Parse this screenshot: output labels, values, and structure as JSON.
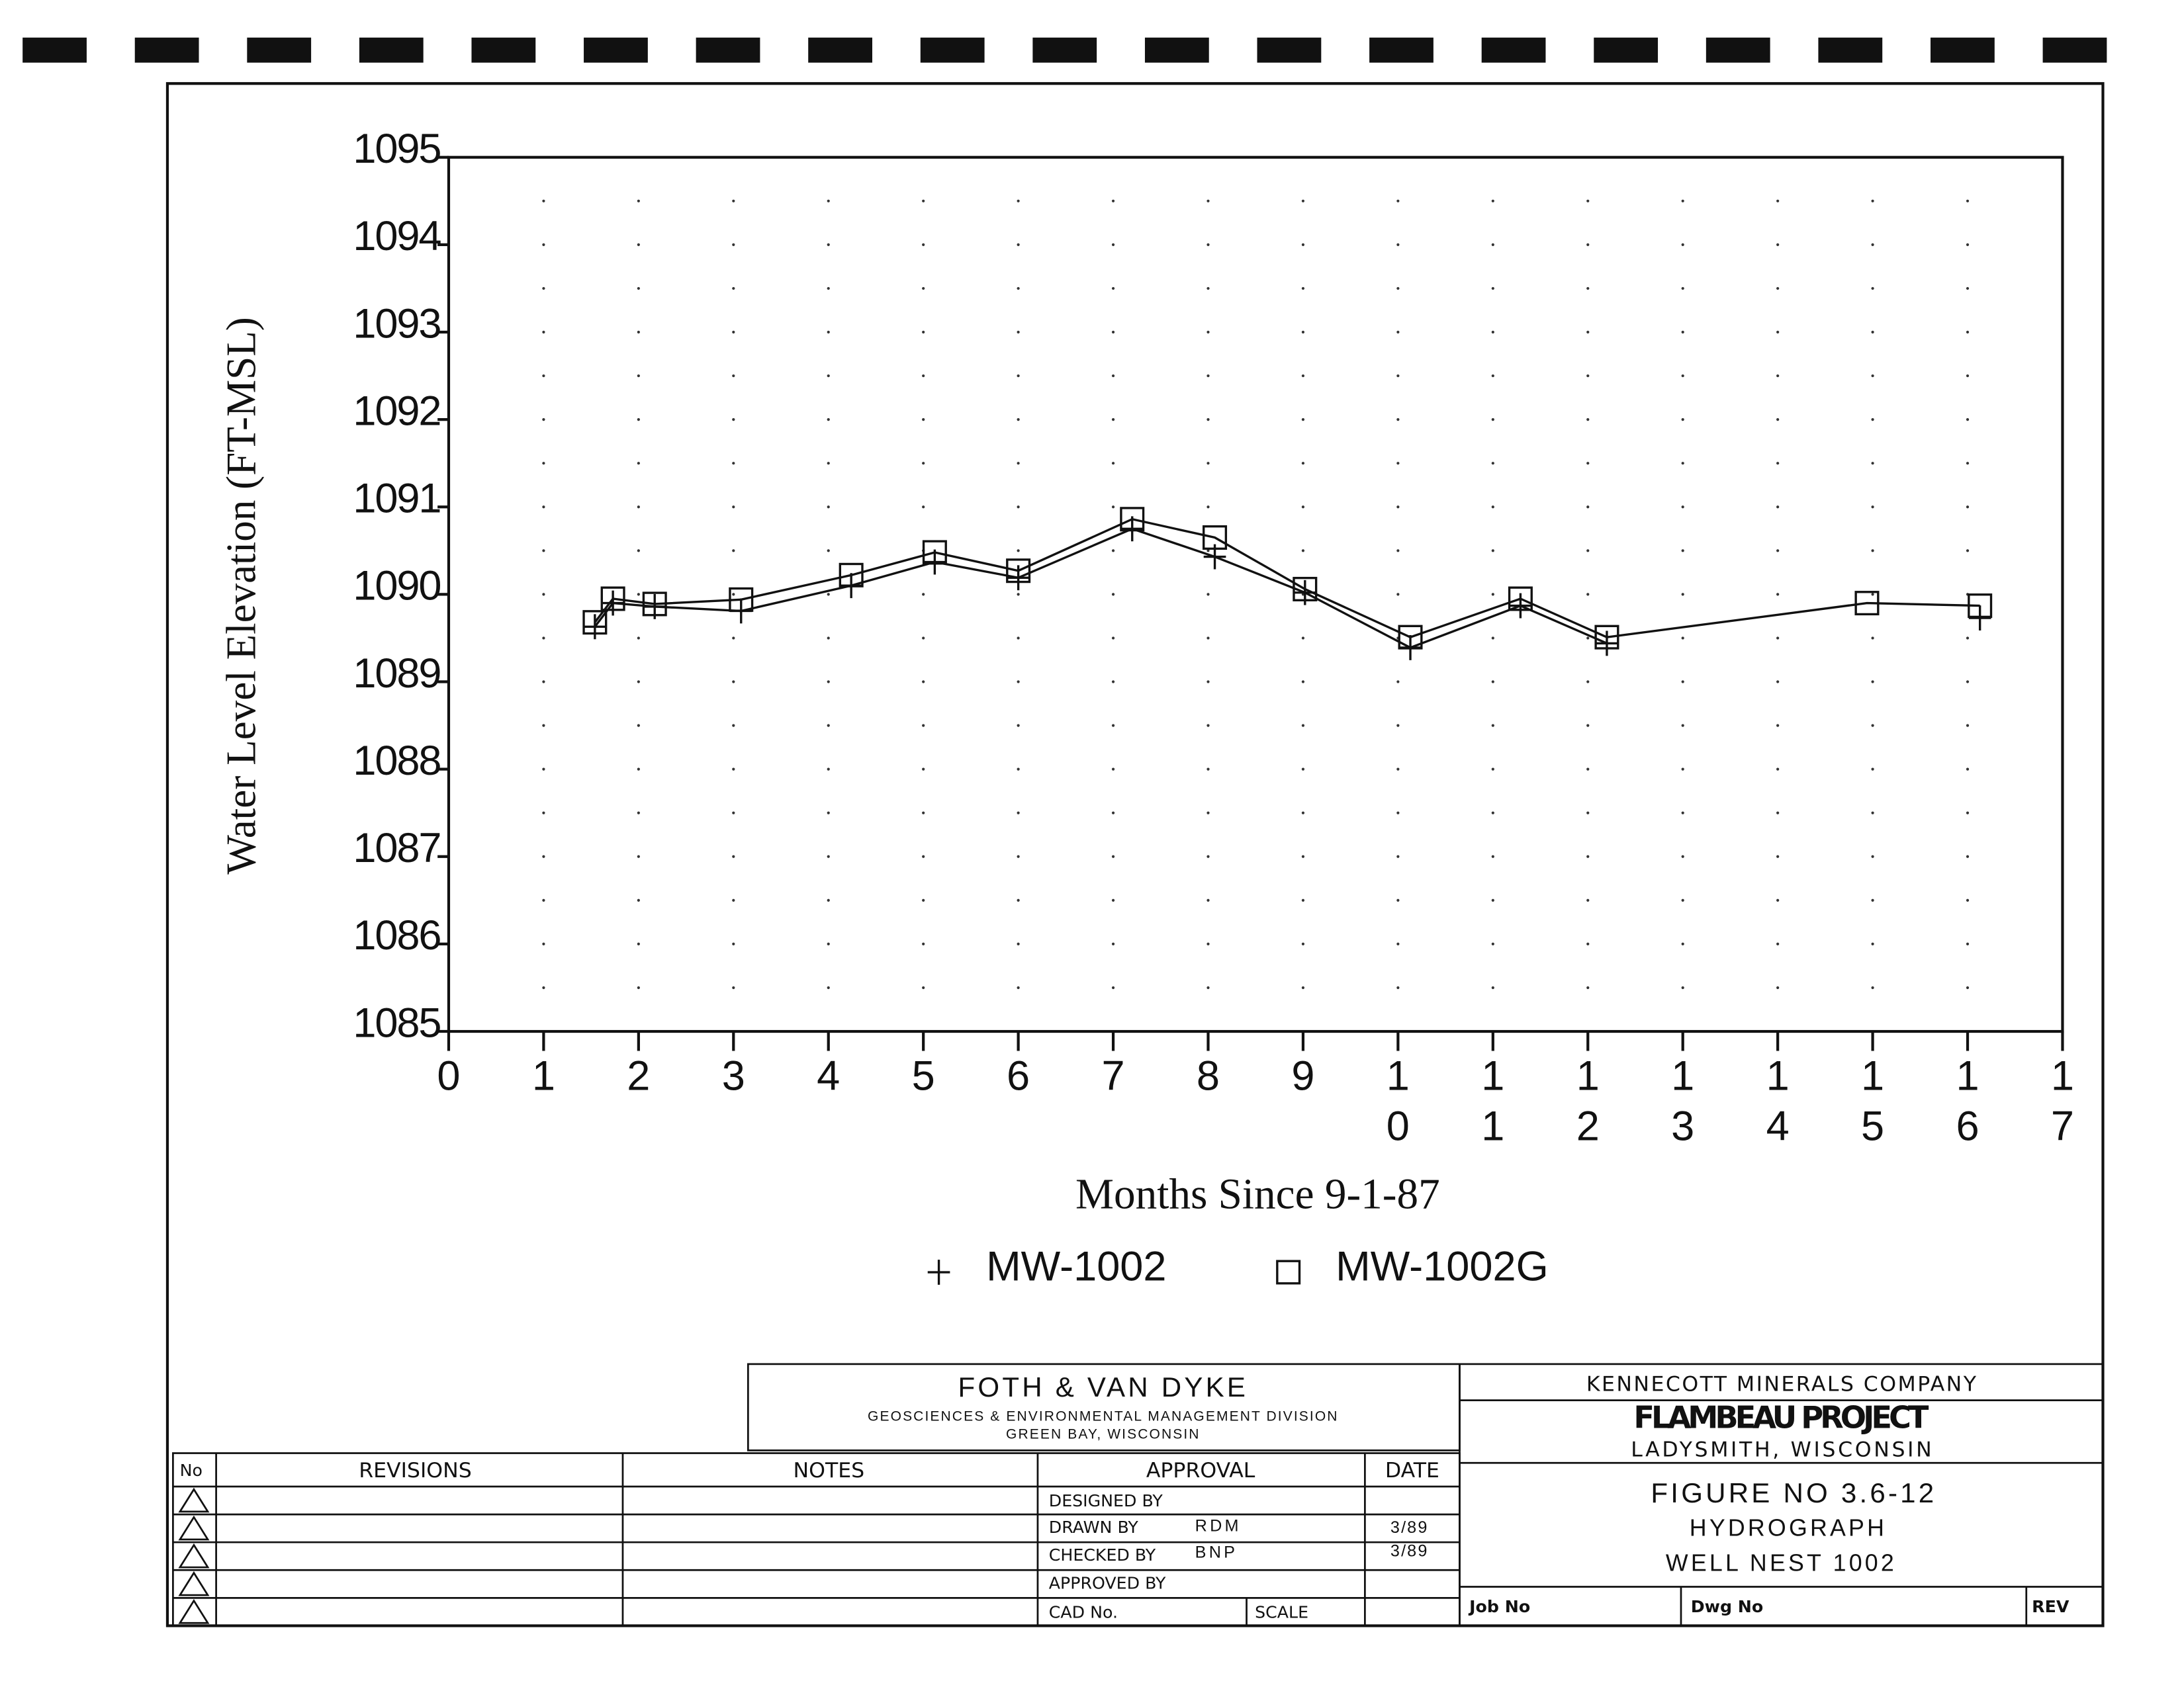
{
  "chart_data": {
    "type": "line",
    "x_label": "Months Since 9-1-87",
    "y_label": "Water Level Elevation (FT-MSL)",
    "x": [
      1.54,
      1.73,
      2.17,
      3.08,
      4.24,
      5.12,
      6.0,
      7.2,
      8.07,
      9.02,
      10.13,
      11.29,
      12.2,
      14.94,
      16.13
    ],
    "series": [
      {
        "name": "MW-1002",
        "color": "#111111",
        "marker": "plus",
        "values": [
          1089.63,
          1089.9,
          1089.86,
          1089.81,
          1090.1,
          1090.37,
          1090.19,
          1090.75,
          1090.43,
          1090.02,
          1089.39,
          1089.87,
          1089.44,
          null,
          1089.73
        ]
      },
      {
        "name": "MW-1002G",
        "color": "#111111",
        "marker": "square",
        "values": [
          1089.68,
          1089.95,
          1089.89,
          1089.94,
          1090.22,
          1090.48,
          1090.27,
          1090.86,
          1090.65,
          1090.06,
          1089.51,
          1089.95,
          1089.51,
          1089.9,
          1089.87
        ]
      }
    ],
    "xlim": [
      0,
      17
    ],
    "xticks": [
      0,
      1,
      2,
      3,
      4,
      5,
      6,
      7,
      8,
      9,
      10,
      11,
      12,
      13,
      14,
      15,
      16,
      17
    ],
    "ylim": [
      1085,
      1095
    ],
    "yticks": [
      1085,
      1086,
      1087,
      1088,
      1089,
      1090,
      1091,
      1092,
      1093,
      1094,
      1095
    ],
    "grid": "dotted",
    "legend": "bottom"
  },
  "title_block": {
    "firm": {
      "name": "FOTH & VAN DYKE",
      "division": "GEOSCIENCES & ENVIRONMENTAL MANAGEMENT DIVISION",
      "location": "GREEN BAY, WISCONSIN"
    },
    "client": {
      "company": "KENNECOTT MINERALS COMPANY",
      "project": "FLAMBEAU PROJECT",
      "location": "LADYSMITH, WISCONSIN"
    },
    "figure": {
      "number": "FIGURE NO 3.6-12",
      "title": "HYDROGRAPH",
      "subtitle": "WELL NEST 1002"
    },
    "footer": {
      "job": "Job No",
      "dwg": "Dwg No",
      "rev": "REV"
    },
    "revisions": {
      "headers": [
        "No",
        "REVISIONS",
        "NOTES",
        "APPROVAL",
        "DATE"
      ],
      "approval": [
        {
          "role": "DESIGNED BY"
        },
        {
          "role": "DRAWN BY",
          "initials": "RDM",
          "date": "3/89"
        },
        {
          "role": "CHECKED BY",
          "initials": "BNP",
          "date": "3/89"
        },
        {
          "role": "APPROVED BY"
        }
      ],
      "cad": "CAD No.",
      "scale": "SCALE"
    }
  }
}
